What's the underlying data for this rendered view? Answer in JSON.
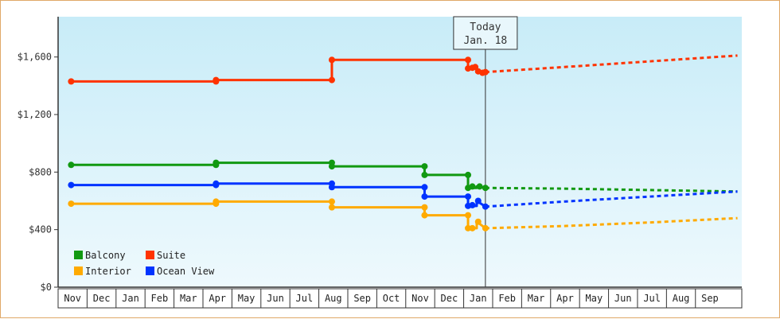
{
  "chart_data": {
    "type": "line",
    "title": "",
    "xlabel": "",
    "ylabel": "",
    "today_label": [
      "Today",
      "Jan. 18"
    ],
    "y_ticks": [
      0,
      400,
      800,
      1200,
      1600
    ],
    "y_tick_labels": [
      "$0",
      "$400",
      "$800",
      "$1,200",
      "$1,600"
    ],
    "ylim": [
      0,
      1880
    ],
    "x_categories": [
      "Nov",
      "Dec",
      "Jan",
      "Feb",
      "Mar",
      "Apr",
      "May",
      "Jun",
      "Jul",
      "Aug",
      "Sep",
      "Oct",
      "Nov",
      "Dec",
      "Jan",
      "Feb",
      "Mar",
      "Apr",
      "May",
      "Jun",
      "Jul",
      "Aug",
      "Sep"
    ],
    "today_index": 14.3,
    "grid": false,
    "legend_position": "bottom-left",
    "colors": {
      "Balcony": "#119911",
      "Suite": "#ff3300",
      "Interior": "#ffaa00",
      "Ocean View": "#0033ff",
      "plot_bg_top": "#c8ecf8",
      "plot_bg_bottom": "#eef9fd",
      "frame": "#e0a868"
    },
    "series": [
      {
        "name": "Balcony",
        "history": [
          [
            0,
            850
          ],
          [
            5,
            850
          ],
          [
            5,
            865
          ],
          [
            9,
            865
          ],
          [
            9,
            840
          ],
          [
            12.2,
            840
          ],
          [
            12.2,
            780
          ],
          [
            13.7,
            780
          ],
          [
            13.7,
            690
          ],
          [
            14,
            690
          ],
          [
            14,
            700
          ],
          [
            14.3,
            690
          ]
        ],
        "markers": [
          [
            0,
            850
          ],
          [
            5,
            850
          ],
          [
            5,
            865
          ],
          [
            9,
            865
          ],
          [
            9,
            840
          ],
          [
            12.2,
            840
          ],
          [
            12.2,
            780
          ],
          [
            13.7,
            780
          ],
          [
            13.7,
            690
          ],
          [
            13.85,
            700
          ],
          [
            14.1,
            700
          ],
          [
            14.3,
            690
          ]
        ],
        "forecast": [
          [
            14.3,
            690
          ],
          [
            17,
            685
          ],
          [
            20,
            675
          ],
          [
            23,
            665
          ]
        ]
      },
      {
        "name": "Suite",
        "history": [
          [
            0,
            1430
          ],
          [
            5,
            1430
          ],
          [
            5,
            1440
          ],
          [
            9,
            1440
          ],
          [
            9,
            1580
          ],
          [
            13.7,
            1580
          ],
          [
            13.7,
            1520
          ],
          [
            14,
            1520
          ],
          [
            14.1,
            1490
          ],
          [
            14.3,
            1495
          ]
        ],
        "markers": [
          [
            0,
            1430
          ],
          [
            5,
            1430
          ],
          [
            5,
            1440
          ],
          [
            9,
            1440
          ],
          [
            9,
            1580
          ],
          [
            13.7,
            1580
          ],
          [
            13.7,
            1520
          ],
          [
            13.85,
            1525
          ],
          [
            13.95,
            1530
          ],
          [
            14.05,
            1500
          ],
          [
            14.2,
            1490
          ],
          [
            14.3,
            1495
          ]
        ],
        "forecast": [
          [
            14.3,
            1495
          ],
          [
            17,
            1530
          ],
          [
            20,
            1570
          ],
          [
            23,
            1610
          ]
        ]
      },
      {
        "name": "Interior",
        "history": [
          [
            0,
            580
          ],
          [
            5,
            580
          ],
          [
            5,
            595
          ],
          [
            9,
            595
          ],
          [
            9,
            555
          ],
          [
            12.2,
            555
          ],
          [
            12.2,
            500
          ],
          [
            13.7,
            500
          ],
          [
            13.7,
            410
          ],
          [
            14,
            410
          ],
          [
            14,
            455
          ],
          [
            14.3,
            410
          ]
        ],
        "markers": [
          [
            0,
            580
          ],
          [
            5,
            580
          ],
          [
            5,
            595
          ],
          [
            9,
            595
          ],
          [
            9,
            555
          ],
          [
            12.2,
            555
          ],
          [
            12.2,
            500
          ],
          [
            13.7,
            500
          ],
          [
            13.7,
            410
          ],
          [
            13.85,
            410
          ],
          [
            14.05,
            455
          ],
          [
            14.3,
            410
          ]
        ],
        "forecast": [
          [
            14.3,
            410
          ],
          [
            17,
            425
          ],
          [
            20,
            450
          ],
          [
            23,
            480
          ]
        ]
      },
      {
        "name": "Ocean View",
        "history": [
          [
            0,
            710
          ],
          [
            5,
            710
          ],
          [
            5,
            720
          ],
          [
            9,
            720
          ],
          [
            9,
            695
          ],
          [
            12.2,
            695
          ],
          [
            12.2,
            630
          ],
          [
            13.7,
            630
          ],
          [
            13.7,
            565
          ],
          [
            14,
            565
          ],
          [
            14,
            600
          ],
          [
            14.3,
            560
          ]
        ],
        "markers": [
          [
            0,
            710
          ],
          [
            5,
            710
          ],
          [
            5,
            720
          ],
          [
            9,
            720
          ],
          [
            9,
            695
          ],
          [
            12.2,
            695
          ],
          [
            12.2,
            630
          ],
          [
            13.7,
            630
          ],
          [
            13.7,
            565
          ],
          [
            13.85,
            570
          ],
          [
            14.05,
            600
          ],
          [
            14.3,
            560
          ]
        ],
        "forecast": [
          [
            14.3,
            560
          ],
          [
            17,
            595
          ],
          [
            20,
            630
          ],
          [
            23,
            665
          ]
        ]
      }
    ],
    "legend": [
      {
        "name": "Balcony"
      },
      {
        "name": "Suite"
      },
      {
        "name": "Interior"
      },
      {
        "name": "Ocean View"
      }
    ]
  }
}
